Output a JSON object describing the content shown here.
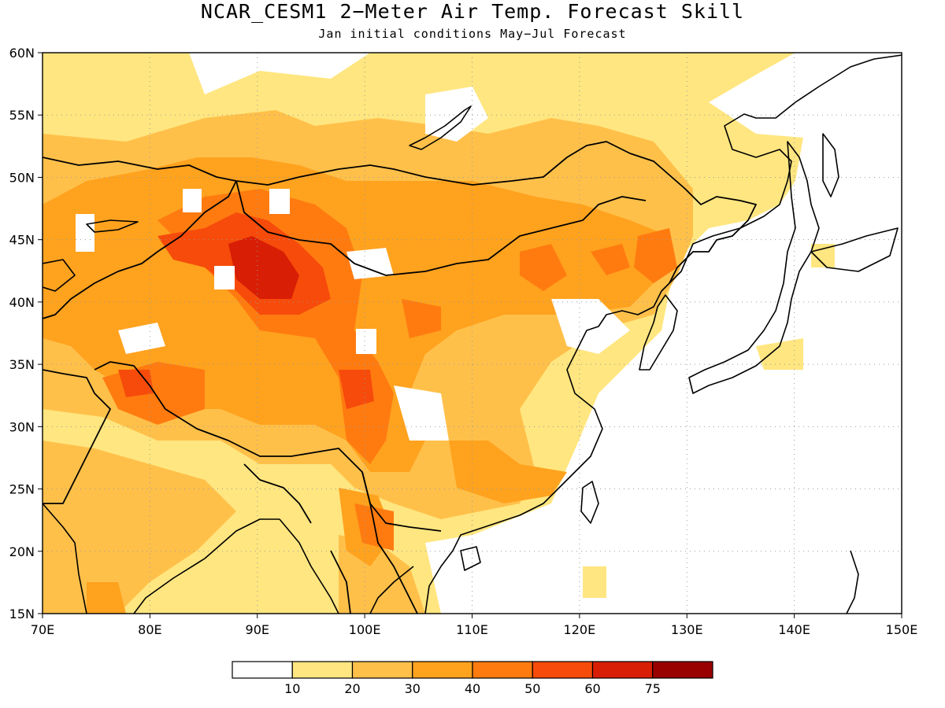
{
  "title": "NCAR_CESM1 2−Meter Air Temp. Forecast Skill",
  "subtitle": "Jan initial conditions  May−Jul Forecast",
  "map": {
    "lon_range": [
      70,
      150
    ],
    "lat_range": [
      15,
      60
    ],
    "lon_ticks": [
      "70E",
      "80E",
      "90E",
      "100E",
      "110E",
      "120E",
      "130E",
      "140E",
      "150E"
    ],
    "lat_ticks": [
      "60N",
      "55N",
      "50N",
      "45N",
      "40N",
      "35N",
      "30N",
      "25N",
      "20N",
      "15N"
    ],
    "grid": true
  },
  "colorbar": {
    "colors": [
      "#ffffff",
      "#ffe680",
      "#ffc04a",
      "#ffa21e",
      "#ff7b10",
      "#f64b0a",
      "#d81e05",
      "#990000"
    ],
    "labels": [
      "10",
      "20",
      "30",
      "40",
      "50",
      "60",
      "75"
    ]
  }
}
